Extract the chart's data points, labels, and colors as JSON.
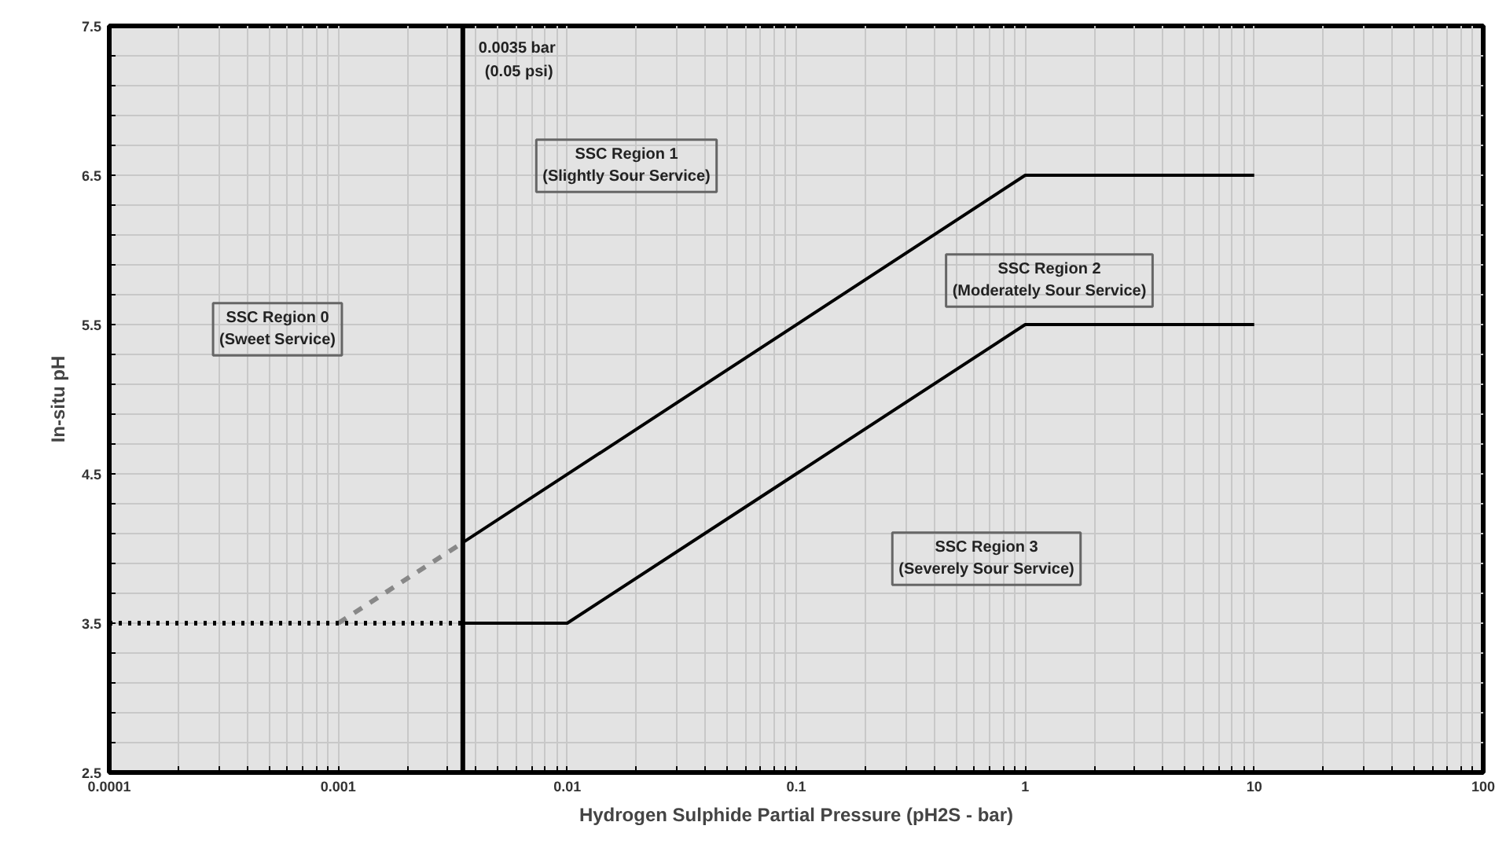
{
  "chart_data": {
    "type": "line",
    "xlabel": "Hydrogen Sulphide Partial Pressure (pH2S - bar)",
    "ylabel": "In-situ pH",
    "log": "x",
    "xlim": [
      0.0001,
      100
    ],
    "xticks": [
      0.0001,
      {
        "value": 0.0002,
        "label": null
      },
      {
        "value": 0.0003,
        "label": null
      },
      {
        "value": 0.0004,
        "label": null
      },
      {
        "value": 0.0005,
        "label": null
      },
      {
        "value": 0.0006,
        "label": null
      },
      {
        "value": 0.0007,
        "label": null
      },
      {
        "value": 0.0008,
        "label": null
      },
      {
        "value": 0.0009,
        "label": null
      },
      0.001,
      {
        "value": 0.002,
        "label": null
      },
      {
        "value": 0.003,
        "label": null
      },
      {
        "value": 0.004,
        "label": null
      },
      {
        "value": 0.005,
        "label": null
      },
      {
        "value": 0.006,
        "label": null
      },
      {
        "value": 0.007,
        "label": null
      },
      {
        "value": 0.008,
        "label": null
      },
      {
        "value": 0.009,
        "label": null
      },
      0.01,
      {
        "value": 0.02,
        "label": null
      },
      {
        "value": 0.03,
        "label": null
      },
      {
        "value": 0.04,
        "label": null
      },
      {
        "value": 0.05,
        "label": null
      },
      {
        "value": 0.06,
        "label": null
      },
      {
        "value": 0.07,
        "label": null
      },
      {
        "value": 0.08,
        "label": null
      },
      {
        "value": 0.09,
        "label": null
      },
      0.1,
      {
        "value": 0.2,
        "label": null
      },
      {
        "value": 0.3,
        "label": null
      },
      {
        "value": 0.4,
        "label": null
      },
      {
        "value": 0.5,
        "label": null
      },
      {
        "value": 0.6,
        "label": null
      },
      {
        "value": 0.7,
        "label": null
      },
      {
        "value": 0.8,
        "label": null
      },
      {
        "value": 0.9,
        "label": null
      },
      1,
      {
        "value": 2,
        "label": null
      },
      {
        "value": 3,
        "label": null
      },
      {
        "value": 4,
        "label": null
      },
      {
        "value": 5,
        "label": null
      },
      {
        "value": 6,
        "label": null
      },
      {
        "value": 7,
        "label": null
      },
      {
        "value": 8,
        "label": null
      },
      {
        "value": 9,
        "label": null
      },
      10,
      {
        "value": 20,
        "label": null
      },
      {
        "value": 30,
        "label": null
      },
      {
        "value": 40,
        "label": null
      },
      {
        "value": 50,
        "label": null
      },
      {
        "value": 60,
        "label": null
      },
      {
        "value": 70,
        "label": null
      },
      {
        "value": 80,
        "label": null
      },
      {
        "value": 90,
        "label": null
      },
      100
    ],
    "ylim": [
      2.5,
      7.5
    ],
    "yticks": [
      2.5,
      {
        "value": 2.7,
        "label": null
      },
      {
        "value": 2.9,
        "label": null
      },
      {
        "value": 3.1,
        "label": null
      },
      {
        "value": 3.3,
        "label": null
      },
      3.5,
      {
        "value": 3.7,
        "label": null
      },
      {
        "value": 3.9,
        "label": null
      },
      {
        "value": 4.1,
        "label": null
      },
      {
        "value": 4.3,
        "label": null
      },
      4.5,
      {
        "value": 4.7,
        "label": null
      },
      {
        "value": 4.9,
        "label": null
      },
      {
        "value": 5.1,
        "label": null
      },
      {
        "value": 5.3,
        "label": null
      },
      5.5,
      {
        "value": 5.7,
        "label": null
      },
      {
        "value": 5.9,
        "label": null
      },
      {
        "value": 6.1,
        "label": null
      },
      {
        "value": 6.3,
        "label": null
      },
      6.5,
      {
        "value": 6.7,
        "label": null
      },
      {
        "value": 6.9,
        "label": null
      },
      {
        "value": 7.1,
        "label": null
      },
      {
        "value": 7.3,
        "label": null
      },
      7.5
    ],
    "grid": true,
    "series": [
      {
        "x": [
          0.0035,
          1,
          10
        ],
        "values": [
          4.04,
          6.5,
          6.5
        ],
        "color": "#000000",
        "line_style": "solid"
      },
      {
        "x": [
          0.0035,
          0.01,
          1,
          10
        ],
        "values": [
          3.5,
          3.5,
          5.5,
          5.5
        ],
        "color": "#000000",
        "line_style": "solid"
      },
      {
        "x": [
          0.001,
          0.0035
        ],
        "values": [
          3.5,
          4.04
        ],
        "color": "#888888",
        "line_style": "dashed"
      },
      {
        "x": [
          0.0001,
          0.0035
        ],
        "values": [
          3.5,
          3.5
        ],
        "color": "#000000",
        "line_style": "dotted"
      }
    ],
    "ref_lines": [
      {
        "axis": "x",
        "value": 0.0035,
        "label": "0.0035 bar\n(0.05 psi)",
        "color": "#000000"
      }
    ],
    "annotations": [
      "SSC Region 0\n(Sweet Service)",
      "SSC Region 1\n(Slightly Sour Service)",
      "SSC Region 2\n(Moderately Sour Service)",
      "SSC Region 3\n(Severely Sour Service)"
    ]
  }
}
